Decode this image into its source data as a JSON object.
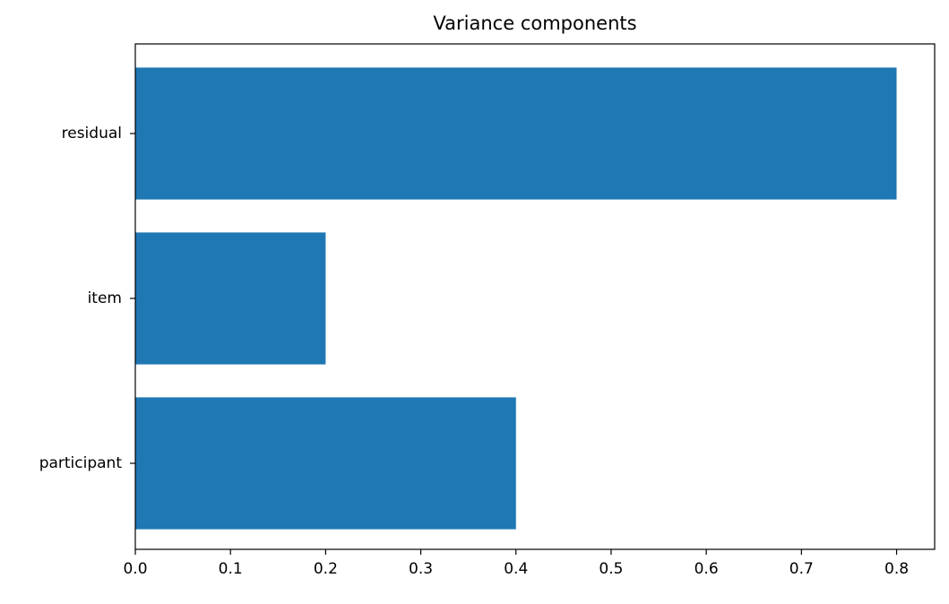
{
  "chart_data": {
    "type": "barh",
    "title": "Variance components",
    "categories": [
      "participant",
      "item",
      "residual"
    ],
    "values": [
      0.4,
      0.2,
      0.8
    ],
    "color": "#1f77b4",
    "xlim": [
      0,
      0.84
    ],
    "xticks": [
      {
        "value": 0,
        "label": "0.0"
      },
      0.1,
      0.2,
      0.3,
      0.4,
      0.5,
      0.6,
      0.7,
      0.8
    ]
  }
}
